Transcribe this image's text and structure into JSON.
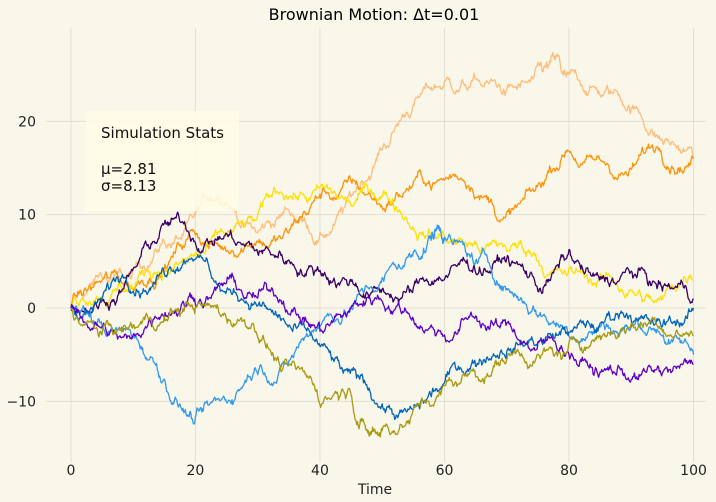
{
  "chart_data": {
    "type": "line",
    "title": "Brownian Motion: Δt=0.01",
    "xlabel": "Time",
    "ylabel": "",
    "xlim": [
      -4,
      102
    ],
    "ylim": [
      -16.5,
      30
    ],
    "xticks": [
      0,
      20,
      40,
      60,
      80,
      100
    ],
    "yticks": [
      -10,
      0,
      10,
      20
    ],
    "grid": true,
    "annotation": {
      "title": "Simulation Stats",
      "lines": [
        "μ=2.81",
        "σ=8.13"
      ]
    },
    "series": [
      {
        "color": "#ffbe7a",
        "x": [
          0,
          5,
          10,
          15,
          20,
          25,
          30,
          35,
          40,
          45,
          50,
          55,
          60,
          65,
          70,
          75,
          78,
          80,
          85,
          90,
          95,
          100
        ],
        "y": [
          0,
          3,
          4,
          7,
          10,
          11,
          8,
          11,
          8,
          12,
          17,
          22,
          24,
          25,
          23,
          26,
          27,
          25,
          23,
          21,
          18,
          16
        ]
      },
      {
        "color": "#ff9408",
        "x": [
          0,
          5,
          10,
          15,
          20,
          25,
          30,
          35,
          40,
          45,
          50,
          55,
          60,
          65,
          70,
          75,
          80,
          85,
          90,
          95,
          100
        ],
        "y": [
          0,
          3,
          2,
          4,
          8,
          6,
          7,
          8,
          12,
          14,
          11,
          13,
          14,
          12,
          10,
          13,
          17,
          16,
          15,
          16,
          16
        ]
      },
      {
        "color": "#ffe000",
        "x": [
          0,
          5,
          10,
          15,
          20,
          25,
          30,
          35,
          40,
          45,
          50,
          55,
          60,
          65,
          70,
          75,
          80,
          85,
          90,
          95,
          100
        ],
        "y": [
          0,
          1,
          2,
          4,
          6,
          8,
          10,
          12,
          13,
          11,
          12,
          9,
          8,
          7,
          6,
          5,
          4,
          3,
          2,
          1,
          3
        ]
      },
      {
        "color": "#3b0066",
        "x": [
          0,
          5,
          10,
          15,
          20,
          25,
          30,
          35,
          40,
          45,
          50,
          55,
          60,
          65,
          70,
          75,
          80,
          85,
          90,
          95,
          100
        ],
        "y": [
          0,
          1,
          4,
          9,
          7,
          8,
          6,
          5,
          4,
          3,
          2,
          2,
          3,
          4,
          5,
          2,
          6,
          3,
          4,
          2,
          1
        ]
      },
      {
        "color": "#3399ee",
        "x": [
          0,
          5,
          10,
          15,
          20,
          25,
          30,
          35,
          40,
          45,
          50,
          55,
          58,
          60,
          65,
          70,
          75,
          80,
          85,
          90,
          95,
          100
        ],
        "y": [
          0,
          -2,
          -3,
          -8,
          -12,
          -10,
          -7,
          -6,
          -2,
          0,
          3,
          6,
          8,
          7,
          5,
          2,
          -1,
          -3,
          -2,
          -2,
          -3,
          -5
        ]
      },
      {
        "color": "#0066bb",
        "x": [
          0,
          5,
          10,
          15,
          20,
          25,
          30,
          35,
          40,
          45,
          50,
          55,
          60,
          65,
          70,
          75,
          80,
          85,
          90,
          95,
          100
        ],
        "y": [
          0,
          1,
          2,
          4,
          5,
          2,
          0,
          -2,
          -4,
          -7,
          -10,
          -11,
          -8,
          -6,
          -5,
          -4,
          -3,
          -2,
          -1,
          -2,
          0
        ]
      },
      {
        "color": "#5e00cc",
        "x": [
          0,
          5,
          10,
          15,
          20,
          25,
          30,
          35,
          40,
          45,
          50,
          55,
          60,
          65,
          70,
          75,
          80,
          85,
          90,
          95,
          100
        ],
        "y": [
          0,
          -2,
          -3,
          -1,
          1,
          3,
          1,
          -1,
          -2,
          0,
          1,
          -1,
          -3,
          -1,
          -2,
          -4,
          -5,
          -7,
          -8,
          -7,
          -6
        ]
      },
      {
        "color": "#a89a10",
        "x": [
          0,
          5,
          10,
          15,
          20,
          25,
          30,
          35,
          40,
          45,
          48,
          50,
          55,
          60,
          65,
          70,
          75,
          80,
          85,
          90,
          95,
          100
        ],
        "y": [
          0,
          -3,
          -2,
          -1,
          0,
          -1,
          -3,
          -6,
          -10,
          -9,
          -14,
          -13,
          -11,
          -8,
          -7,
          -6,
          -5,
          -4,
          -3,
          -2,
          -2,
          -3
        ]
      }
    ]
  }
}
